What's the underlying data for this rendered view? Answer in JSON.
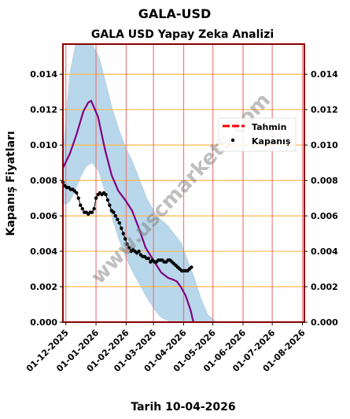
{
  "colors": {
    "frame": "#8b0000",
    "hgrid": "#ffb74d",
    "vgrid": "#e57373",
    "band": "#b9d7ea",
    "forecast": "#800080",
    "closing": "#000000",
    "legend_forecast": "#ff0000",
    "watermark": "#808080"
  },
  "watermark": "www.uscmarkets.com",
  "chart_data": {
    "type": "line",
    "title": "GALA-USD",
    "subtitle": "GALA USD Yapay Zeka Analizi",
    "xlabel": "Tarih 10-04-2026",
    "ylabel": "Kapanış Fiyatları",
    "x_range": [
      "2025-11-28",
      "2026-08-03"
    ],
    "ylim": [
      0,
      0.0157
    ],
    "grid": true,
    "legend_position": "top-right",
    "yticks": [
      "0.000",
      "0.002",
      "0.004",
      "0.006",
      "0.008",
      "0.010",
      "0.012",
      "0.014"
    ],
    "ytick_values": [
      0,
      0.002,
      0.004,
      0.006,
      0.008,
      0.01,
      0.012,
      0.014
    ],
    "xticks": [
      "01-12-2025",
      "01-01-2026",
      "01-02-2026",
      "01-03-2026",
      "01-04-2026",
      "01-05-2026",
      "01-06-2026",
      "01-07-2026",
      "01-08-2026"
    ],
    "xtick_dates": [
      "2025-12-01",
      "2026-01-01",
      "2026-02-01",
      "2026-03-01",
      "2026-04-01",
      "2026-05-01",
      "2026-06-01",
      "2026-07-01",
      "2026-08-01"
    ],
    "legend": [
      "Tahmin",
      "Kapanış"
    ],
    "series": [
      {
        "name": "Tahmin",
        "x": [
          "2025-11-28",
          "2025-12-05",
          "2025-12-12",
          "2025-12-19",
          "2025-12-24",
          "2025-12-27",
          "2026-01-03",
          "2026-01-10",
          "2026-01-17",
          "2026-01-24",
          "2026-01-31",
          "2026-02-07",
          "2026-02-14",
          "2026-02-21",
          "2026-03-02",
          "2026-03-09",
          "2026-03-16",
          "2026-03-21",
          "2026-03-25",
          "2026-03-29",
          "2026-04-03",
          "2026-04-08",
          "2026-04-11"
        ],
        "values": [
          0.0087,
          0.0095,
          0.0106,
          0.0119,
          0.0124,
          0.0125,
          0.0116,
          0.0098,
          0.0083,
          0.0074,
          0.0069,
          0.0063,
          0.0053,
          0.0042,
          0.0034,
          0.0028,
          0.0025,
          0.0024,
          0.0023,
          0.002,
          0.0015,
          0.0007,
          0.0
        ]
      },
      {
        "name": "Kapanış",
        "x": [
          "2025-11-28",
          "2025-11-30",
          "2025-12-02",
          "2025-12-04",
          "2025-12-06",
          "2025-12-08",
          "2025-12-10",
          "2025-12-12",
          "2025-12-14",
          "2025-12-16",
          "2025-12-18",
          "2025-12-20",
          "2025-12-22",
          "2025-12-24",
          "2025-12-26",
          "2025-12-28",
          "2025-12-30",
          "2026-01-01",
          "2026-01-03",
          "2026-01-05",
          "2026-01-07",
          "2026-01-09",
          "2026-01-11",
          "2026-01-13",
          "2026-01-15",
          "2026-01-17",
          "2026-01-19",
          "2026-01-21",
          "2026-01-23",
          "2026-01-25",
          "2026-01-27",
          "2026-01-29",
          "2026-01-31",
          "2026-02-02",
          "2026-02-04",
          "2026-02-06",
          "2026-02-08",
          "2026-02-10",
          "2026-02-12",
          "2026-02-14",
          "2026-02-16",
          "2026-02-18",
          "2026-02-20",
          "2026-02-22",
          "2026-02-24",
          "2026-02-26",
          "2026-02-28",
          "2026-03-02",
          "2026-03-04",
          "2026-03-06",
          "2026-03-08",
          "2026-03-10",
          "2026-03-12",
          "2026-03-14",
          "2026-03-16",
          "2026-03-18",
          "2026-03-20",
          "2026-03-22",
          "2026-03-24",
          "2026-03-26",
          "2026-03-28",
          "2026-03-30",
          "2026-04-01",
          "2026-04-03",
          "2026-04-05",
          "2026-04-07",
          "2026-04-09"
        ],
        "values": [
          0.0079,
          0.0077,
          0.0076,
          0.0076,
          0.0075,
          0.0075,
          0.0074,
          0.0073,
          0.007,
          0.0066,
          0.0064,
          0.0062,
          0.0062,
          0.0061,
          0.0062,
          0.0062,
          0.0064,
          0.007,
          0.0072,
          0.0073,
          0.0072,
          0.0073,
          0.0072,
          0.0069,
          0.0066,
          0.0063,
          0.0062,
          0.006,
          0.0058,
          0.0056,
          0.0053,
          0.005,
          0.0047,
          0.0044,
          0.0042,
          0.004,
          0.0041,
          0.004,
          0.0039,
          0.004,
          0.0038,
          0.0037,
          0.0037,
          0.0036,
          0.0036,
          0.0034,
          0.0035,
          0.0034,
          0.0034,
          0.0035,
          0.0035,
          0.0035,
          0.0034,
          0.0034,
          0.0035,
          0.0035,
          0.0034,
          0.0033,
          0.0032,
          0.0031,
          0.003,
          0.0029,
          0.0029,
          0.0029,
          0.0029,
          0.003,
          0.0031
        ]
      }
    ],
    "band": {
      "x": [
        "2025-11-28",
        "2025-12-05",
        "2025-12-11",
        "2025-12-16",
        "2025-12-22",
        "2025-12-28",
        "2026-01-04",
        "2026-01-11",
        "2026-01-18",
        "2026-01-25",
        "2026-02-01",
        "2026-02-08",
        "2026-02-15",
        "2026-02-22",
        "2026-03-01",
        "2026-03-08",
        "2026-03-15",
        "2026-03-22",
        "2026-03-29",
        "2026-04-05",
        "2026-04-12",
        "2026-04-19",
        "2026-04-26",
        "2026-05-03"
      ],
      "upper": [
        0.0095,
        0.014,
        0.0157,
        0.0157,
        0.0157,
        0.0157,
        0.015,
        0.0135,
        0.012,
        0.0108,
        0.0098,
        0.009,
        0.008,
        0.007,
        0.0063,
        0.0058,
        0.0055,
        0.005,
        0.0045,
        0.0035,
        0.0025,
        0.0013,
        0.0004,
        0.0001
      ],
      "lower": [
        0.0066,
        0.0068,
        0.0075,
        0.0082,
        0.0088,
        0.009,
        0.0085,
        0.0072,
        0.0058,
        0.0046,
        0.0036,
        0.0028,
        0.0021,
        0.0014,
        0.0008,
        0.0003,
        0.0001,
        0,
        0,
        0,
        0,
        0,
        0,
        0
      ]
    }
  }
}
